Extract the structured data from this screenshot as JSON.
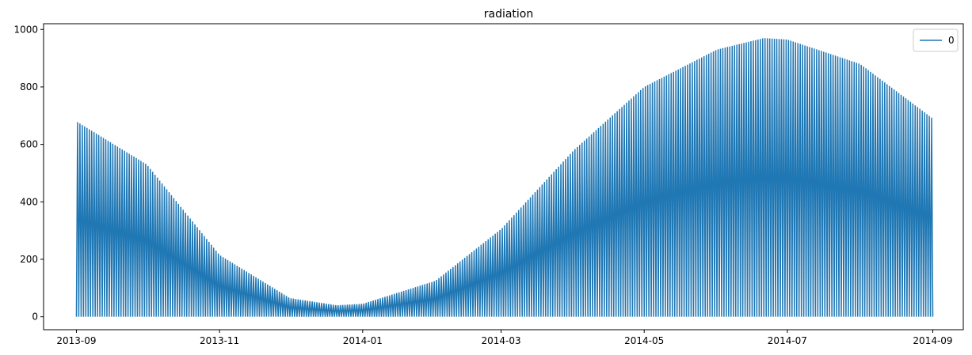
{
  "chart_data": {
    "type": "line",
    "title": "radiation",
    "xlabel": "",
    "ylabel": "",
    "x_ticks": [
      "2013-09",
      "2013-11",
      "2014-01",
      "2014-03",
      "2014-05",
      "2014-07",
      "2014-09"
    ],
    "y_ticks": [
      0,
      200,
      400,
      600,
      800,
      1000
    ],
    "xlim": [
      "2013-08-18",
      "2014-09-14"
    ],
    "ylim": [
      -45,
      1020
    ],
    "grid": false,
    "legend_position": "top-right",
    "series": [
      {
        "name": "0",
        "color": "#1f77b4",
        "x_start": "2013-09-01",
        "x_end": "2014-09-01",
        "sampling": "hourly (daily cycle: 0 at night, peak at midday)",
        "daily_peak_envelope": [
          {
            "date": "2013-09-01",
            "value": 680
          },
          {
            "date": "2013-10-01",
            "value": 530
          },
          {
            "date": "2013-11-01",
            "value": 215
          },
          {
            "date": "2013-12-01",
            "value": 65
          },
          {
            "date": "2013-12-21",
            "value": 40
          },
          {
            "date": "2014-01-01",
            "value": 45
          },
          {
            "date": "2014-02-01",
            "value": 125
          },
          {
            "date": "2014-03-01",
            "value": 305
          },
          {
            "date": "2014-04-01",
            "value": 580
          },
          {
            "date": "2014-05-01",
            "value": 800
          },
          {
            "date": "2014-06-01",
            "value": 930
          },
          {
            "date": "2014-06-21",
            "value": 970
          },
          {
            "date": "2014-07-01",
            "value": 965
          },
          {
            "date": "2014-08-01",
            "value": 880
          },
          {
            "date": "2014-09-01",
            "value": 690
          }
        ]
      }
    ]
  }
}
